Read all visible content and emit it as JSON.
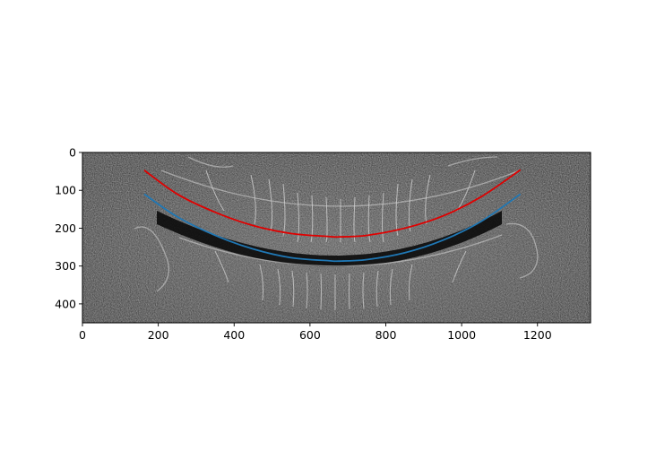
{
  "chart_data": {
    "type": "line",
    "title": "",
    "xlabel": "",
    "ylabel": "",
    "xlim": [
      0,
      1340
    ],
    "ylim": [
      450,
      0
    ],
    "y_inverted": true,
    "grid": false,
    "background": "grayscale edge-detected dental panoramic X-ray image",
    "x_ticks": [
      0,
      200,
      400,
      600,
      800,
      1000,
      1200
    ],
    "y_ticks": [
      0,
      100,
      200,
      300,
      400
    ],
    "series": [
      {
        "color": "#e00000",
        "x": [
          163,
          250,
          350,
          450,
          550,
          650,
          676,
          750,
          850,
          950,
          1050,
          1155
        ],
        "y": [
          47,
          110,
          158,
          193,
          214,
          222,
          223,
          219,
          200,
          168,
          118,
          46
        ]
      },
      {
        "color": "#1f77b4",
        "x": [
          163,
          250,
          350,
          450,
          550,
          650,
          676,
          750,
          850,
          950,
          1050,
          1155
        ],
        "y": [
          110,
          170,
          219,
          255,
          278,
          286,
          287,
          283,
          265,
          232,
          183,
          110
        ]
      }
    ]
  }
}
